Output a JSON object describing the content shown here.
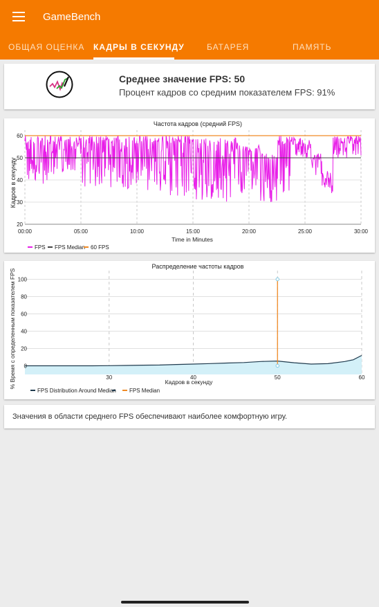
{
  "app": {
    "title": "GameBench",
    "menu_icon": "hamburger-menu-icon",
    "accent_color": "#f57a00"
  },
  "tabs": [
    {
      "label": "ОБЩАЯ ОЦЕНКА",
      "active": false
    },
    {
      "label": "КАДРЫ В СЕКУНДУ",
      "active": true
    },
    {
      "label": "БАТАРЕЯ",
      "active": false
    },
    {
      "label": "ПАМЯТЬ",
      "active": false
    }
  ],
  "summary": {
    "icon": "fps-gauge-icon",
    "fps_text": "Среднее значение FPS: 50",
    "percent_text": "Процент кадров со средним показателем FPS: 91%"
  },
  "note": {
    "text": "Значения в области среднего FPS обеспечивают наиболее комфортную игру."
  },
  "chart_data": [
    {
      "type": "line",
      "title": "Частота кадров (средний FPS)",
      "xlabel": "Time in Minutes",
      "ylabel": "Кадров в секунду",
      "xlim": [
        0,
        30
      ],
      "ylim": [
        20,
        60
      ],
      "x_ticks": [
        "00:00",
        "05:00",
        "10:00",
        "15:00",
        "20:00",
        "25:00",
        "30:00"
      ],
      "y_ticks": [
        20,
        30,
        40,
        50,
        60
      ],
      "grid": true,
      "legend_position": "bottom-left",
      "colors": {
        "fps": "#e81ee8",
        "median": "#444444",
        "target": "#f08a24"
      },
      "series": [
        {
          "name": "FPS",
          "segments": [
            {
              "from": 0,
              "to": 5,
              "min": 38,
              "max": 60
            },
            {
              "from": 5,
              "to": 10,
              "min": 36,
              "max": 60
            },
            {
              "from": 10,
              "to": 15,
              "min": 32,
              "max": 60
            },
            {
              "from": 15,
              "to": 19,
              "min": 30,
              "max": 59
            },
            {
              "from": 19,
              "to": 21,
              "min": 34,
              "max": 56
            },
            {
              "from": 21,
              "to": 22.5,
              "min": 30,
              "max": 52
            },
            {
              "from": 22.5,
              "to": 24,
              "min": 34,
              "max": 60
            },
            {
              "from": 24,
              "to": 25.5,
              "min": 50,
              "max": 59
            },
            {
              "from": 25.5,
              "to": 26.5,
              "min": 42,
              "max": 52
            },
            {
              "from": 26.5,
              "to": 27.5,
              "min": 34,
              "max": 44
            },
            {
              "from": 27.5,
              "to": 30,
              "min": 50,
              "max": 60
            }
          ]
        },
        {
          "name": "FPS Median",
          "value": 50
        },
        {
          "name": "60 FPS",
          "value": 60
        }
      ]
    },
    {
      "type": "area",
      "title": "Распределение частоты кадров",
      "xlabel": "Кадров в секунду",
      "ylabel": "% Время с определенным показателем FPS",
      "xlim": [
        20,
        60
      ],
      "ylim": [
        -10,
        110
      ],
      "x_ticks": [
        30,
        40,
        50,
        60
      ],
      "y_ticks": [
        0,
        20,
        40,
        60,
        80,
        100
      ],
      "grid": true,
      "legend_position": "bottom-left",
      "colors": {
        "distribution": "#1f3a4d",
        "fill": "#d3f0f8",
        "median": "#f08a24",
        "marker": "#7ec8e3"
      },
      "series": [
        {
          "name": "FPS Distribution Around Median",
          "x": [
            20,
            22,
            24,
            26,
            28,
            30,
            32,
            34,
            36,
            38,
            40,
            42,
            44,
            46,
            48,
            50,
            52,
            54,
            56,
            58,
            59,
            60
          ],
          "y": [
            0,
            0,
            0,
            0,
            0,
            0.2,
            0.4,
            0.7,
            0.9,
            1.5,
            2,
            2.6,
            3.2,
            3.8,
            5,
            5.5,
            3.5,
            2,
            2.5,
            5,
            7,
            12
          ]
        },
        {
          "name": "FPS Median",
          "x": 50,
          "y": [
            0,
            100
          ]
        }
      ]
    }
  ]
}
